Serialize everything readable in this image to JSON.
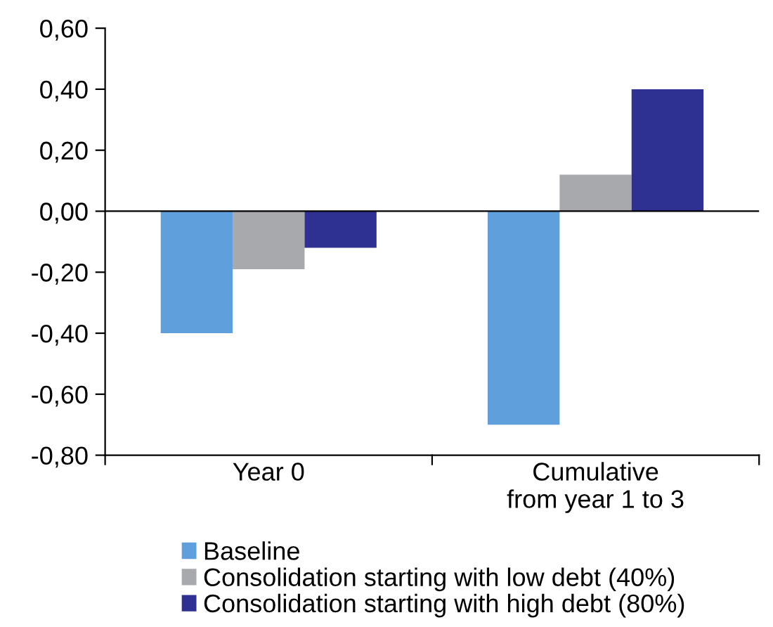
{
  "chart_data": {
    "type": "bar",
    "categories": [
      "Year 0",
      "Cumulative\nfrom year 1 to 3"
    ],
    "series": [
      {
        "name": "Baseline",
        "color": "#5f9fdb",
        "values": [
          -0.4,
          -0.7
        ]
      },
      {
        "name": "Consolidation starting with low debt (40%)",
        "color": "#a7a9ac",
        "values": [
          -0.19,
          0.12
        ]
      },
      {
        "name": "Consolidation starting with high debt (80%)",
        "color": "#2e3192",
        "values": [
          -0.12,
          0.4
        ]
      }
    ],
    "ylim": [
      -0.8,
      0.6
    ],
    "yticks": [
      {
        "value": -0.8,
        "label": "-0,80"
      },
      {
        "value": -0.6,
        "label": "-0,60"
      },
      {
        "value": -0.4,
        "label": "-0,40"
      },
      {
        "value": -0.2,
        "label": "-0,20"
      },
      {
        "value": 0,
        "label": "0,00"
      },
      {
        "value": 0.2,
        "label": "0,20"
      },
      {
        "value": 0.4,
        "label": "0,40"
      },
      {
        "value": 0.6,
        "label": "0,60"
      }
    ],
    "ref_lines": [
      {
        "axis": "y",
        "value": 0,
        "label": null,
        "color": "#000000"
      }
    ],
    "grid": false,
    "legend": "bottom"
  }
}
